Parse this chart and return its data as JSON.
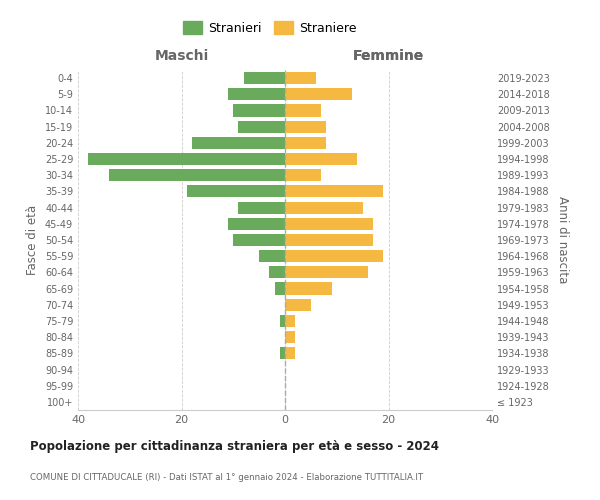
{
  "age_groups": [
    "100+",
    "95-99",
    "90-94",
    "85-89",
    "80-84",
    "75-79",
    "70-74",
    "65-69",
    "60-64",
    "55-59",
    "50-54",
    "45-49",
    "40-44",
    "35-39",
    "30-34",
    "25-29",
    "20-24",
    "15-19",
    "10-14",
    "5-9",
    "0-4"
  ],
  "birth_years": [
    "≤ 1923",
    "1924-1928",
    "1929-1933",
    "1934-1938",
    "1939-1943",
    "1944-1948",
    "1949-1953",
    "1954-1958",
    "1959-1963",
    "1964-1968",
    "1969-1973",
    "1974-1978",
    "1979-1983",
    "1984-1988",
    "1989-1993",
    "1994-1998",
    "1999-2003",
    "2004-2008",
    "2009-2013",
    "2014-2018",
    "2019-2023"
  ],
  "maschi": [
    0,
    0,
    0,
    1,
    0,
    1,
    0,
    2,
    3,
    5,
    10,
    11,
    9,
    19,
    34,
    38,
    18,
    9,
    10,
    11,
    8
  ],
  "femmine": [
    0,
    0,
    0,
    2,
    2,
    2,
    5,
    9,
    16,
    19,
    17,
    17,
    15,
    19,
    7,
    14,
    8,
    8,
    7,
    13,
    6
  ],
  "male_color": "#6aaa5c",
  "female_color": "#f5b942",
  "grid_color": "#cccccc",
  "text_color": "#666666",
  "dashed_line_color": "#aaaaaa",
  "title": "Popolazione per cittadinanza straniera per età e sesso - 2024",
  "subtitle": "COMUNE DI CITTADUCALE (RI) - Dati ISTAT al 1° gennaio 2024 - Elaborazione TUTTITALIA.IT",
  "ylabel_left": "Fasce di età",
  "ylabel_right": "Anni di nascita",
  "xlabel_left": "Maschi",
  "xlabel_right": "Femmine",
  "legend_maschi": "Stranieri",
  "legend_femmine": "Straniere",
  "xlim": 40,
  "bg_color": "#ffffff"
}
